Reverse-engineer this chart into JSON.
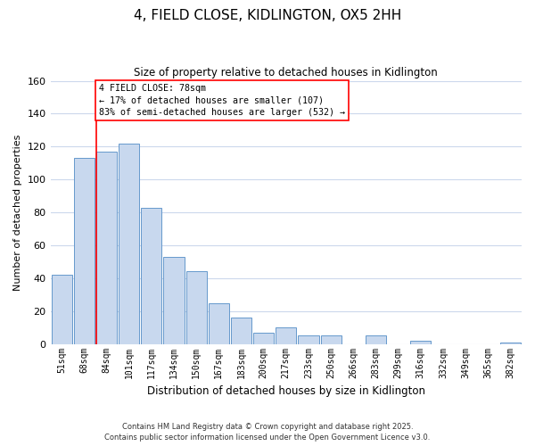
{
  "title": "4, FIELD CLOSE, KIDLINGTON, OX5 2HH",
  "subtitle": "Size of property relative to detached houses in Kidlington",
  "xlabel": "Distribution of detached houses by size in Kidlington",
  "ylabel": "Number of detached properties",
  "bar_color": "#c8d8ee",
  "bar_edge_color": "#6699cc",
  "vline_color": "red",
  "annotation_title": "4 FIELD CLOSE: 78sqm",
  "annotation_line1": "← 17% of detached houses are smaller (107)",
  "annotation_line2": "83% of semi-detached houses are larger (532) →",
  "categories": [
    "51sqm",
    "68sqm",
    "84sqm",
    "101sqm",
    "117sqm",
    "134sqm",
    "150sqm",
    "167sqm",
    "183sqm",
    "200sqm",
    "217sqm",
    "233sqm",
    "250sqm",
    "266sqm",
    "283sqm",
    "299sqm",
    "316sqm",
    "332sqm",
    "349sqm",
    "365sqm",
    "382sqm"
  ],
  "values": [
    42,
    113,
    117,
    122,
    83,
    53,
    44,
    25,
    16,
    7,
    10,
    5,
    5,
    0,
    5,
    0,
    2,
    0,
    0,
    0,
    1
  ],
  "ylim": [
    0,
    160
  ],
  "yticks": [
    0,
    20,
    40,
    60,
    80,
    100,
    120,
    140,
    160
  ],
  "footer1": "Contains HM Land Registry data © Crown copyright and database right 2025.",
  "footer2": "Contains public sector information licensed under the Open Government Licence v3.0.",
  "bg_color": "#ffffff",
  "grid_color": "#ccd8ec"
}
